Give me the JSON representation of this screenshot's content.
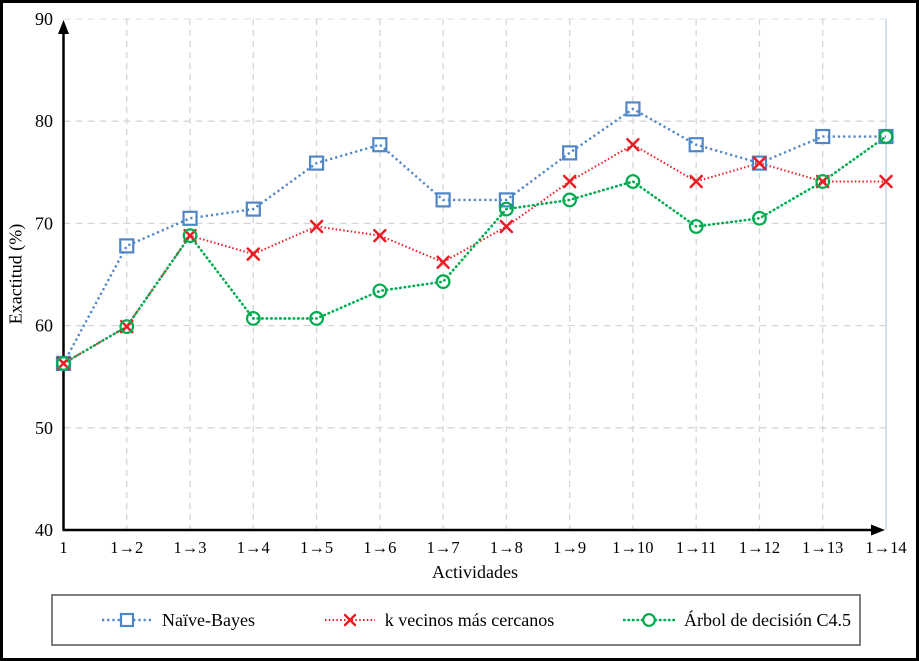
{
  "chart_data": {
    "type": "line",
    "title": "",
    "xlabel": "Actividades",
    "ylabel": "Exactitud (%)",
    "ylim": [
      40,
      90
    ],
    "yticks": [
      40,
      50,
      60,
      70,
      80,
      90
    ],
    "grid": true,
    "legend_position": "bottom",
    "categories": [
      "1",
      "1→2",
      "1→3",
      "1→4",
      "1→5",
      "1→6",
      "1→7",
      "1→8",
      "1→9",
      "1→10",
      "1→11",
      "1→12",
      "1→13",
      "1→14"
    ],
    "series": [
      {
        "name": "Naïve-Bayes",
        "marker": "square",
        "color": "#4f86c6",
        "values": [
          56.3,
          67.8,
          70.5,
          71.4,
          75.9,
          77.7,
          72.3,
          72.3,
          76.9,
          81.2,
          77.7,
          75.9,
          78.5,
          78.5
        ]
      },
      {
        "name": "k vecinos más cercanos",
        "marker": "x",
        "color": "#ec1c24",
        "values": [
          56.3,
          59.9,
          68.8,
          67.0,
          69.7,
          68.8,
          66.2,
          69.7,
          74.1,
          77.7,
          74.1,
          75.9,
          74.1,
          74.1
        ]
      },
      {
        "name": "Árbol de decisión C4.5",
        "marker": "circle",
        "color": "#00ab50",
        "values": [
          56.3,
          59.9,
          68.8,
          60.7,
          60.7,
          63.4,
          64.3,
          71.4,
          72.3,
          74.1,
          69.7,
          70.5,
          74.1,
          78.5
        ]
      }
    ]
  },
  "colors": {
    "gridline": "#d6d6d6",
    "top_gridline": "#dce6f2",
    "right_border": "#c7d8ec",
    "axis": "#000000",
    "legend_border": "#7f7f7f",
    "frame_border": "#000000",
    "background": "#ffffff"
  }
}
